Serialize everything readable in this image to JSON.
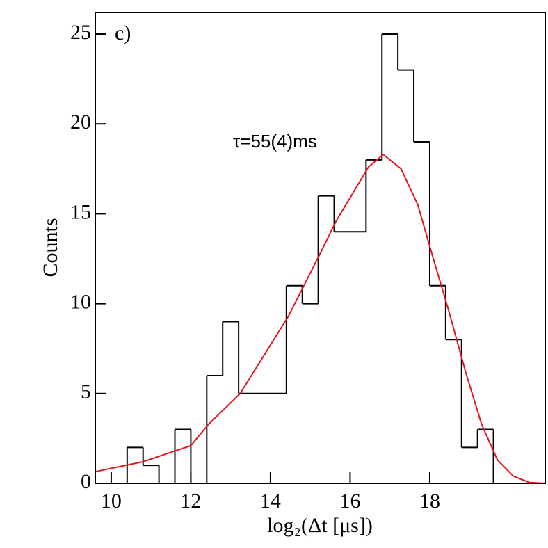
{
  "chart_data": {
    "type": "histogram",
    "xlabel": "log₂(Δt [μs])",
    "ylabel": "Counts",
    "annotations": [
      "c)",
      "τ=55(4)ms"
    ],
    "bins": [
      9.6,
      10.0,
      10.4,
      10.8,
      11.2,
      11.6,
      12.0,
      12.4,
      12.8,
      13.2,
      13.6,
      14.0,
      14.4,
      14.8,
      15.2,
      15.6,
      16.0,
      16.4,
      16.8,
      17.2,
      17.6,
      18.0,
      18.4,
      18.8,
      19.2,
      19.6,
      20.0,
      20.4,
      20.8
    ],
    "counts": [
      0,
      0,
      2,
      1,
      0,
      3,
      0,
      6,
      9,
      5,
      5,
      5,
      11,
      10,
      16,
      14,
      14,
      18,
      25,
      23,
      19,
      11,
      8,
      2,
      3,
      0,
      0,
      0
    ],
    "color": "#000000",
    "fit": {
      "color": "#e8141c",
      "x": [
        9.6,
        10.79,
        12.0,
        12.45,
        13.24,
        14.45,
        15.25,
        15.65,
        16.46,
        16.83,
        17.28,
        17.7,
        18.09,
        18.49,
        18.9,
        19.3,
        19.7,
        20.1,
        20.5,
        20.9
      ],
      "y": [
        0.65,
        1.2,
        2.1,
        3.3,
        5.0,
        9.3,
        12.8,
        14.6,
        17.6,
        18.3,
        17.5,
        15.5,
        12.5,
        9.5,
        6.2,
        3.3,
        1.3,
        0.4,
        0.05,
        0
      ]
    },
    "xlim": [
      9.6,
      20.9
    ],
    "ylim": [
      0,
      26.2
    ],
    "xticks": [
      10,
      12,
      14,
      16,
      18
    ],
    "yticks": [
      0,
      5,
      10,
      15,
      20,
      25
    ]
  }
}
